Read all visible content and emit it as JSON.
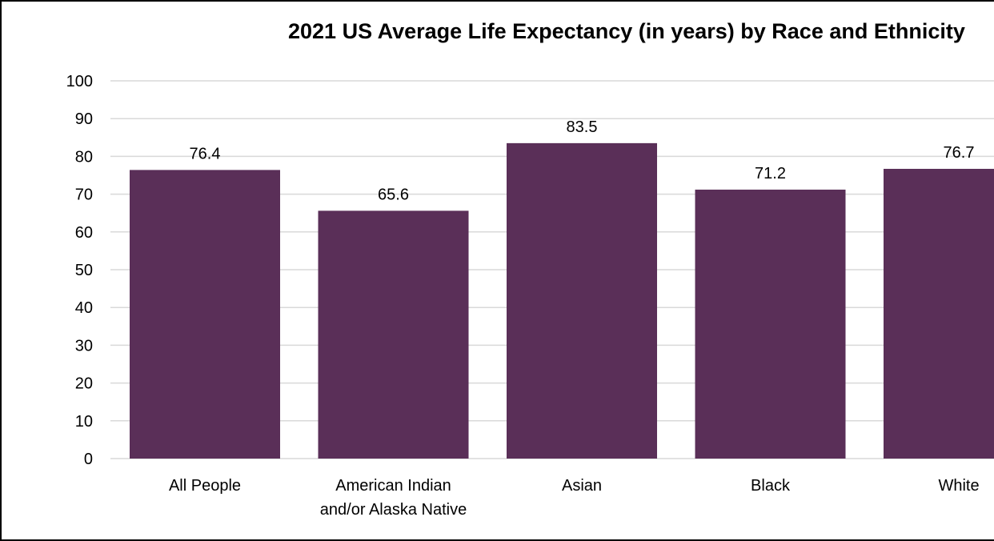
{
  "chart_data": {
    "type": "bar",
    "title": "2021 US Average Life Expectancy (in years) by Race and Ethnicity",
    "xlabel": "",
    "ylabel": "",
    "categories": [
      "All People",
      [
        "American Indian",
        "and/or Alaska Native"
      ],
      "Asian",
      "Black",
      "White"
    ],
    "values": [
      76.4,
      65.6,
      83.5,
      71.2,
      76.7
    ],
    "data_labels": [
      "76.4",
      "65.6",
      "83.5",
      "71.2",
      "76.7"
    ],
    "ylim": [
      0,
      100
    ],
    "yticks": [
      "0",
      "10",
      "20",
      "30",
      "40",
      "50",
      "60",
      "70",
      "80",
      "90",
      "100"
    ],
    "grid": true,
    "legend": "none",
    "bar_color": "#5a2f58",
    "grid_color": "#d9d9d9"
  }
}
